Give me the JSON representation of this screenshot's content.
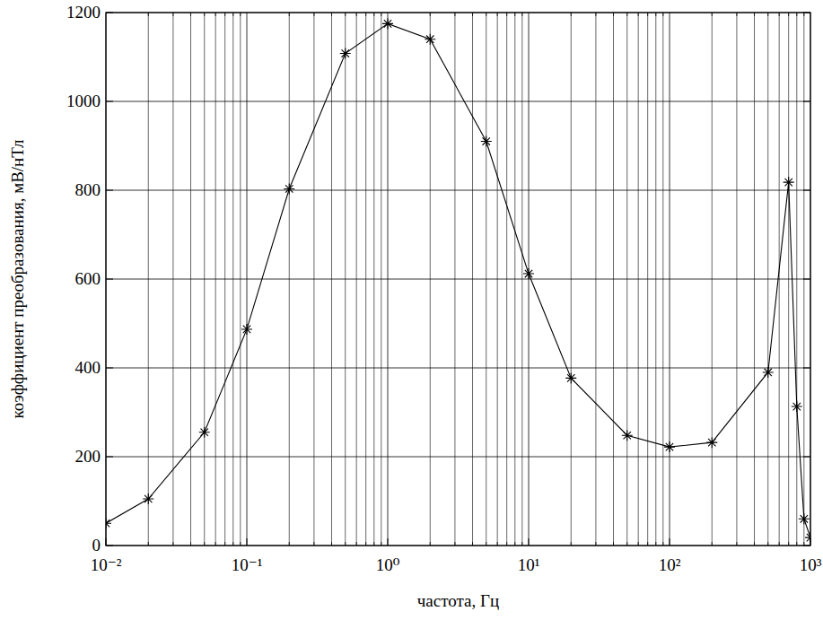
{
  "chart_data": {
    "type": "line",
    "xlabel": "частота, Гц",
    "ylabel": "коэффициент преобразования, мВ/нТл",
    "x": [
      0.01,
      0.02,
      0.05,
      0.1,
      0.2,
      0.5,
      1,
      2,
      5,
      10,
      20,
      50,
      100,
      200,
      500,
      700,
      800,
      900,
      1000
    ],
    "values": [
      50,
      105,
      255,
      487,
      803,
      1108,
      1175,
      1140,
      910,
      612,
      377,
      248,
      222,
      232,
      390,
      818,
      313,
      60,
      18
    ],
    "color": "#000000",
    "marker": "asterisk",
    "line_style": "solid",
    "log": "x",
    "grid": true,
    "xlim": [
      0.01,
      1000
    ],
    "ylim": [
      0,
      1200
    ],
    "xticks": [
      {
        "value": 0.01,
        "label": "10⁻²"
      },
      {
        "value": 0.1,
        "label": "10⁻¹"
      },
      {
        "value": 1,
        "label": "10⁰"
      },
      {
        "value": 10,
        "label": "10¹"
      },
      {
        "value": 100,
        "label": "10²"
      },
      {
        "value": 1000,
        "label": "10³"
      }
    ],
    "yticks": [
      0,
      200,
      400,
      600,
      800,
      1000,
      1200
    ]
  }
}
